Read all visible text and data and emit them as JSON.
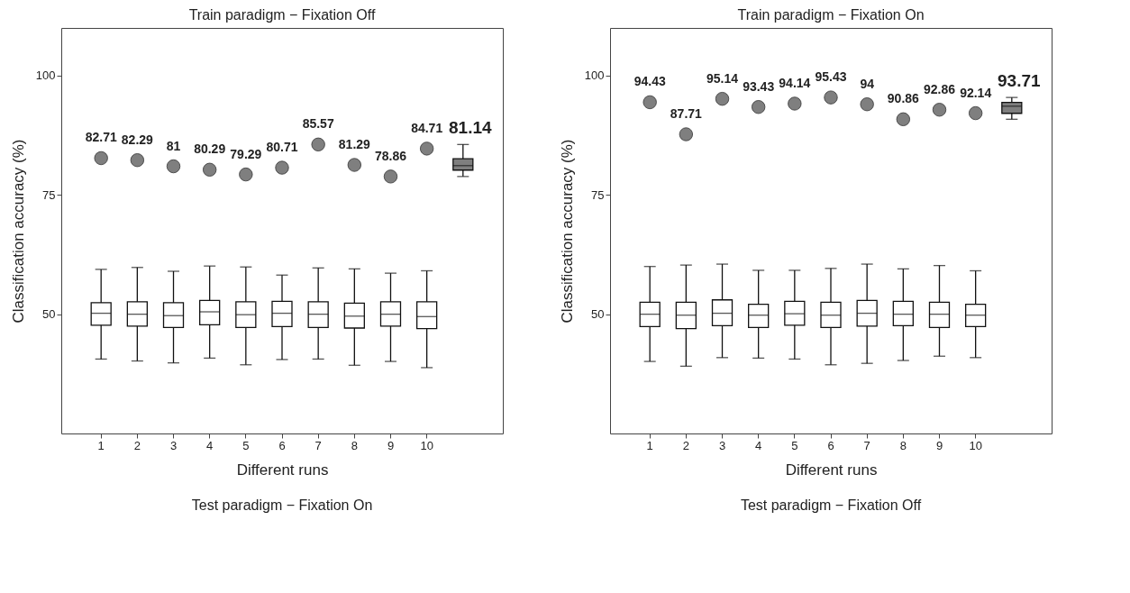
{
  "chart_data": [
    {
      "type": "box",
      "title": "Train paradigm − Fixation Off",
      "xlabel": "Different runs",
      "ylabel": "Classification accuracy (%)",
      "categories": [
        "1",
        "2",
        "3",
        "4",
        "5",
        "6",
        "7",
        "8",
        "9",
        "10",
        null
      ],
      "ylim": [
        25,
        110
      ],
      "yticks": [
        50,
        75,
        100
      ],
      "grid": false,
      "data_labels": true,
      "marker": "circle",
      "series": [
        {
          "color": "#ffffff",
          "boxes": [
            {
              "low": 40.6,
              "q1": 47.7,
              "median": 50.2,
              "q3": 52.4,
              "high": 59.4
            },
            {
              "low": 40.2,
              "q1": 47.5,
              "median": 50,
              "q3": 52.6,
              "high": 59.8
            },
            {
              "low": 39.8,
              "q1": 47.2,
              "median": 49.7,
              "q3": 52.4,
              "high": 59
            },
            {
              "low": 40.8,
              "q1": 47.8,
              "median": 50.5,
              "q3": 52.9,
              "high": 60.1
            },
            {
              "low": 39.4,
              "q1": 47.2,
              "median": 49.9,
              "q3": 52.6,
              "high": 59.9
            },
            {
              "low": 40.5,
              "q1": 47.4,
              "median": 50.2,
              "q3": 52.7,
              "high": 58.2
            },
            {
              "low": 40.6,
              "q1": 47.2,
              "median": 50,
              "q3": 52.6,
              "high": 59.7
            },
            {
              "low": 39.3,
              "q1": 47.1,
              "median": 49.6,
              "q3": 52.3,
              "high": 59.5
            },
            {
              "low": 40.1,
              "q1": 47.5,
              "median": 50,
              "q3": 52.6,
              "high": 58.6
            },
            {
              "low": 38.8,
              "q1": 47,
              "median": 49.5,
              "q3": 52.6,
              "high": 59.1
            },
            null
          ]
        },
        {
          "color": "#7f7f7f",
          "boxes": [
            null,
            null,
            null,
            null,
            null,
            null,
            null,
            null,
            null,
            null,
            {
              "low": 78.86,
              "q1": 80.2,
              "median": 81.14,
              "q3": 82.6,
              "high": 85.57
            }
          ]
        },
        {
          "type": "scatter",
          "color": "#7f7f7f",
          "values": [
            82.71,
            82.29,
            81,
            80.29,
            79.29,
            80.71,
            85.57,
            81.29,
            78.86,
            84.71,
            null
          ]
        }
      ],
      "annotations": [
        {
          "text": "81.14",
          "y": 85.57
        },
        "Test paradigm − Fixation On"
      ]
    },
    {
      "type": "box",
      "title": "Train paradigm − Fixation On",
      "xlabel": "Different runs",
      "ylabel": "Classification accuracy (%)",
      "categories": [
        "1",
        "2",
        "3",
        "4",
        "5",
        "6",
        "7",
        "8",
        "9",
        "10",
        null
      ],
      "ylim": [
        25,
        110
      ],
      "yticks": [
        50,
        75,
        100
      ],
      "grid": false,
      "data_labels": true,
      "marker": "circle",
      "series": [
        {
          "color": "#ffffff",
          "boxes": [
            {
              "low": 40.1,
              "q1": 47.4,
              "median": 50,
              "q3": 52.5,
              "high": 60
            },
            {
              "low": 39.1,
              "q1": 47,
              "median": 49.8,
              "q3": 52.5,
              "high": 60.3
            },
            {
              "low": 40.9,
              "q1": 47.6,
              "median": 50.2,
              "q3": 53,
              "high": 60.5
            },
            {
              "low": 40.8,
              "q1": 47.2,
              "median": 49.8,
              "q3": 52.1,
              "high": 59.2
            },
            {
              "low": 40.6,
              "q1": 47.7,
              "median": 50.1,
              "q3": 52.7,
              "high": 59.2
            },
            {
              "low": 39.4,
              "q1": 47.2,
              "median": 49.8,
              "q3": 52.5,
              "high": 59.6
            },
            {
              "low": 39.7,
              "q1": 47.5,
              "median": 50.2,
              "q3": 52.9,
              "high": 60.5
            },
            {
              "low": 40.3,
              "q1": 47.6,
              "median": 50,
              "q3": 52.7,
              "high": 59.5
            },
            {
              "low": 41.2,
              "q1": 47.2,
              "median": 50,
              "q3": 52.5,
              "high": 60.2
            },
            {
              "low": 40.9,
              "q1": 47.4,
              "median": 49.8,
              "q3": 52.1,
              "high": 59.1
            },
            null
          ]
        },
        {
          "color": "#7f7f7f",
          "boxes": [
            null,
            null,
            null,
            null,
            null,
            null,
            null,
            null,
            null,
            null,
            {
              "low": 90.86,
              "q1": 92.1,
              "median": 93.6,
              "q3": 94.4,
              "high": 95.43
            }
          ]
        },
        {
          "type": "scatter",
          "color": "#7f7f7f",
          "values": [
            94.43,
            87.71,
            95.14,
            93.43,
            94.14,
            95.43,
            94,
            90.86,
            92.86,
            92.14,
            null
          ]
        }
      ],
      "annotations": [
        {
          "text": "93.71",
          "y": 95.43
        },
        "Test paradigm − Fixation Off"
      ]
    }
  ]
}
